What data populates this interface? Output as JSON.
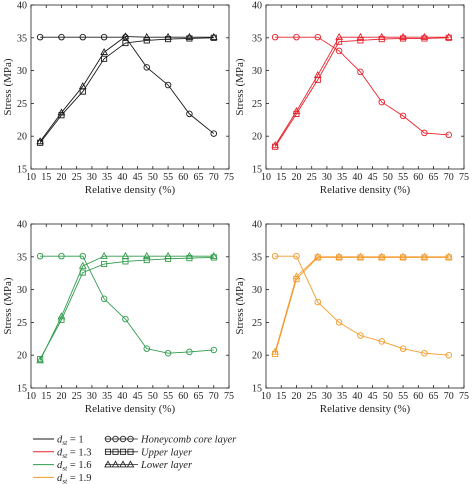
{
  "chart_data": [
    {
      "type": "line",
      "panel": "top-left",
      "xlabel": "Relative density (%)",
      "ylabel": "Stress (MPa)",
      "xlim": [
        10,
        75
      ],
      "ylim": [
        15,
        40
      ],
      "xticks": [
        10,
        15,
        20,
        25,
        30,
        35,
        40,
        45,
        50,
        55,
        60,
        65,
        70,
        75
      ],
      "yticks": [
        15,
        20,
        25,
        30,
        35,
        40
      ],
      "color": "#1a1a1a",
      "series": [
        {
          "name": "Honeycomb core layer",
          "marker": "circle",
          "x": [
            13,
            20,
            27,
            34,
            41,
            48,
            55,
            62,
            70
          ],
          "y": [
            35.1,
            35.1,
            35.1,
            35.1,
            35.1,
            30.5,
            27.8,
            23.4,
            20.4
          ]
        },
        {
          "name": "Upper layer",
          "marker": "square",
          "x": [
            13,
            20,
            27,
            34,
            41,
            48,
            55,
            62,
            70
          ],
          "y": [
            19.0,
            23.2,
            26.8,
            31.8,
            34.2,
            34.6,
            34.8,
            34.9,
            35.0
          ]
        },
        {
          "name": "Lower layer",
          "marker": "triangle",
          "x": [
            13,
            20,
            27,
            34,
            41,
            48,
            55,
            62,
            70
          ],
          "y": [
            19.2,
            23.6,
            27.6,
            32.8,
            35.2,
            35.1,
            35.1,
            35.1,
            35.1
          ]
        }
      ]
    },
    {
      "type": "line",
      "panel": "top-right",
      "xlabel": "Relative density (%)",
      "ylabel": "Stress (MPa)",
      "xlim": [
        10,
        75
      ],
      "ylim": [
        15,
        40
      ],
      "xticks": [
        10,
        15,
        20,
        25,
        30,
        35,
        40,
        45,
        50,
        55,
        60,
        65,
        70,
        75
      ],
      "yticks": [
        15,
        20,
        25,
        30,
        35,
        40
      ],
      "color": "#e8202a",
      "series": [
        {
          "name": "Honeycomb core layer",
          "marker": "circle",
          "x": [
            13,
            20,
            27,
            34,
            41,
            48,
            55,
            62,
            70
          ],
          "y": [
            35.1,
            35.1,
            35.1,
            33.0,
            29.8,
            25.2,
            23.1,
            20.5,
            20.2
          ]
        },
        {
          "name": "Upper layer",
          "marker": "square",
          "x": [
            13,
            20,
            27,
            34,
            41,
            48,
            55,
            62,
            70
          ],
          "y": [
            18.4,
            23.4,
            28.6,
            34.4,
            34.6,
            34.8,
            34.9,
            34.9,
            35.0
          ]
        },
        {
          "name": "Lower layer",
          "marker": "triangle",
          "x": [
            13,
            20,
            27,
            34,
            41,
            48,
            55,
            62,
            70
          ],
          "y": [
            18.6,
            23.8,
            29.3,
            35.1,
            35.1,
            35.1,
            35.1,
            35.1,
            35.1
          ]
        }
      ]
    },
    {
      "type": "line",
      "panel": "bottom-left",
      "xlabel": "Relative density (%)",
      "ylabel": "Stress (MPa)",
      "xlim": [
        10,
        75
      ],
      "ylim": [
        15,
        40
      ],
      "xticks": [
        10,
        15,
        20,
        25,
        30,
        35,
        40,
        45,
        50,
        55,
        60,
        65,
        70,
        75
      ],
      "yticks": [
        15,
        20,
        25,
        30,
        35,
        40
      ],
      "color": "#2e9b4a",
      "series": [
        {
          "name": "Honeycomb core layer",
          "marker": "circle",
          "x": [
            13,
            20,
            27,
            34,
            41,
            48,
            55,
            62,
            70
          ],
          "y": [
            35.1,
            35.1,
            35.1,
            28.6,
            25.5,
            21.0,
            20.3,
            20.5,
            20.8
          ]
        },
        {
          "name": "Upper layer",
          "marker": "square",
          "x": [
            13,
            20,
            27,
            34,
            41,
            48,
            55,
            62,
            70
          ],
          "y": [
            19.4,
            25.4,
            32.6,
            33.9,
            34.3,
            34.5,
            34.7,
            34.8,
            34.9
          ]
        },
        {
          "name": "Lower layer",
          "marker": "triangle",
          "x": [
            13,
            20,
            27,
            34,
            41,
            48,
            55,
            62,
            70
          ],
          "y": [
            19.2,
            25.9,
            33.6,
            35.1,
            35.1,
            35.1,
            35.1,
            35.1,
            35.1
          ]
        }
      ]
    },
    {
      "type": "line",
      "panel": "bottom-right",
      "xlabel": "Relative density (%)",
      "ylabel": "Stress (MPa)",
      "xlim": [
        10,
        75
      ],
      "ylim": [
        15,
        40
      ],
      "xticks": [
        10,
        15,
        20,
        25,
        30,
        35,
        40,
        45,
        50,
        55,
        60,
        65,
        70,
        75
      ],
      "yticks": [
        15,
        20,
        25,
        30,
        35,
        40
      ],
      "color": "#f39a2b",
      "series": [
        {
          "name": "Honeycomb core layer",
          "marker": "circle",
          "x": [
            13,
            20,
            27,
            34,
            41,
            48,
            55,
            62,
            70
          ],
          "y": [
            35.1,
            35.1,
            28.1,
            25.0,
            23.0,
            22.1,
            21.0,
            20.3,
            20.0
          ]
        },
        {
          "name": "Upper layer",
          "marker": "square",
          "x": [
            13,
            20,
            27,
            34,
            41,
            48,
            55,
            62,
            70
          ],
          "y": [
            20.2,
            31.6,
            34.9,
            34.9,
            34.9,
            34.9,
            34.9,
            34.9,
            34.9
          ]
        },
        {
          "name": "Lower layer",
          "marker": "triangle",
          "x": [
            13,
            20,
            27,
            34,
            41,
            48,
            55,
            62,
            70
          ],
          "y": [
            20.5,
            32.0,
            35.0,
            35.0,
            35.0,
            35.0,
            35.0,
            35.0,
            35.0
          ]
        }
      ]
    }
  ],
  "legend": {
    "lines": [
      {
        "label": "= 1",
        "color": "#1a1a1a"
      },
      {
        "label": "= 1.3",
        "color": "#e8202a"
      },
      {
        "label": "= 1.6",
        "color": "#2e9b4a"
      },
      {
        "label": "= 1.9",
        "color": "#f39a2b"
      }
    ],
    "line_symbol_base": "d",
    "line_symbol_sub": "st",
    "markers": [
      {
        "label": "Honeycomb core layer",
        "marker": "circle"
      },
      {
        "label": "Upper layer",
        "marker": "square"
      },
      {
        "label": "Lower layer",
        "marker": "triangle"
      }
    ]
  }
}
